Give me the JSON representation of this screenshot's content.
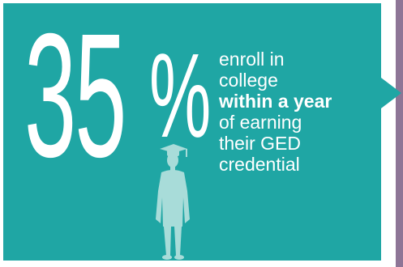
{
  "stat": {
    "number": "35",
    "symbol": "%"
  },
  "caption": {
    "line1": "enroll in",
    "line2": "college",
    "line3": "within a year",
    "line4": "of earning",
    "line5": "their GED",
    "line6": "credential"
  },
  "icons": {
    "graduate": "graduate-silhouette-icon",
    "arrow": "right-arrow-icon"
  },
  "colors": {
    "teal": "#1fa6a4",
    "purple": "#8e7596",
    "figure": "#a8dcd9",
    "text": "#ffffff"
  }
}
